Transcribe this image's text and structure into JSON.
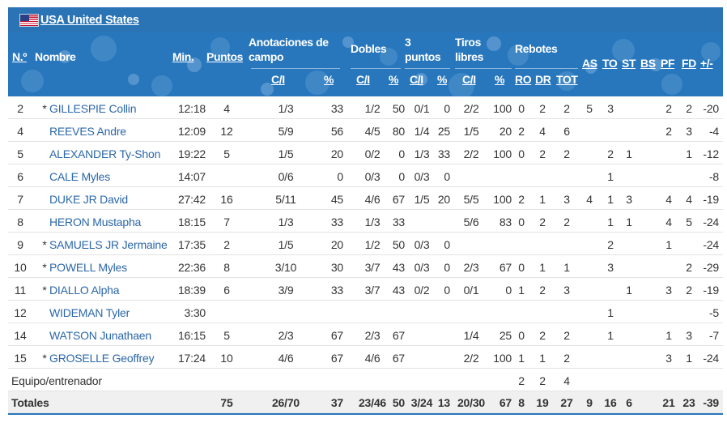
{
  "team": {
    "name": "USA United States"
  },
  "header": {
    "no": "N.º",
    "name": "Nombre",
    "min": "Min.",
    "pts": "Puntos",
    "fg": "Anotaciones de campo",
    "two": "Dobles",
    "three": "3 puntos",
    "ft": "Tiros libres",
    "reb": "Rebotes",
    "as": "AS",
    "to": "TO",
    "st": "ST",
    "bs": "BS",
    "pf": "PF",
    "fd": "FD",
    "pm": "+/-",
    "ci": "C/I",
    "pct": "%",
    "ro": "RO",
    "dr": "DR",
    "tot": "TOT"
  },
  "players": [
    {
      "no": "2",
      "starter": "*",
      "name": "GILLESPIE Collin",
      "min": "12:18",
      "pts": "4",
      "fg": "1/3",
      "fg_pct": "33",
      "two": "1/2",
      "two_pct": "50",
      "three": "0/1",
      "three_pct": "0",
      "ft": "2/2",
      "ft_pct": "100",
      "ro": "0",
      "dr": "2",
      "tot": "2",
      "as": "5",
      "to": "3",
      "st": "",
      "bs": "",
      "pf": "2",
      "fd": "2",
      "pm": "-20"
    },
    {
      "no": "4",
      "starter": "",
      "name": "REEVES Andre",
      "min": "12:09",
      "pts": "12",
      "fg": "5/9",
      "fg_pct": "56",
      "two": "4/5",
      "two_pct": "80",
      "three": "1/4",
      "three_pct": "25",
      "ft": "1/5",
      "ft_pct": "20",
      "ro": "2",
      "dr": "4",
      "tot": "6",
      "as": "",
      "to": "",
      "st": "",
      "bs": "",
      "pf": "2",
      "fd": "3",
      "pm": "-4"
    },
    {
      "no": "5",
      "starter": "",
      "name": "ALEXANDER Ty-Shon",
      "min": "19:22",
      "pts": "5",
      "fg": "1/5",
      "fg_pct": "20",
      "two": "0/2",
      "two_pct": "0",
      "three": "1/3",
      "three_pct": "33",
      "ft": "2/2",
      "ft_pct": "100",
      "ro": "0",
      "dr": "2",
      "tot": "2",
      "as": "",
      "to": "2",
      "st": "1",
      "bs": "",
      "pf": "",
      "fd": "1",
      "pm": "-12"
    },
    {
      "no": "6",
      "starter": "",
      "name": "CALE Myles",
      "min": "14:07",
      "pts": "",
      "fg": "0/6",
      "fg_pct": "0",
      "two": "0/3",
      "two_pct": "0",
      "three": "0/3",
      "three_pct": "0",
      "ft": "",
      "ft_pct": "",
      "ro": "",
      "dr": "",
      "tot": "",
      "as": "",
      "to": "1",
      "st": "",
      "bs": "",
      "pf": "",
      "fd": "",
      "pm": "-8"
    },
    {
      "no": "7",
      "starter": "",
      "name": "DUKE JR David",
      "min": "27:42",
      "pts": "16",
      "fg": "5/11",
      "fg_pct": "45",
      "two": "4/6",
      "two_pct": "67",
      "three": "1/5",
      "three_pct": "20",
      "ft": "5/5",
      "ft_pct": "100",
      "ro": "2",
      "dr": "1",
      "tot": "3",
      "as": "4",
      "to": "1",
      "st": "3",
      "bs": "",
      "pf": "4",
      "fd": "4",
      "pm": "-19"
    },
    {
      "no": "8",
      "starter": "",
      "name": "HERON Mustapha",
      "min": "18:15",
      "pts": "7",
      "fg": "1/3",
      "fg_pct": "33",
      "two": "1/3",
      "two_pct": "33",
      "three": "",
      "three_pct": "",
      "ft": "5/6",
      "ft_pct": "83",
      "ro": "0",
      "dr": "2",
      "tot": "2",
      "as": "",
      "to": "1",
      "st": "1",
      "bs": "",
      "pf": "4",
      "fd": "5",
      "pm": "-24"
    },
    {
      "no": "9",
      "starter": "*",
      "name": "SAMUELS JR Jermaine",
      "min": "17:35",
      "pts": "2",
      "fg": "1/5",
      "fg_pct": "20",
      "two": "1/2",
      "two_pct": "50",
      "three": "0/3",
      "three_pct": "0",
      "ft": "",
      "ft_pct": "",
      "ro": "",
      "dr": "",
      "tot": "",
      "as": "",
      "to": "2",
      "st": "",
      "bs": "",
      "pf": "1",
      "fd": "",
      "pm": "-24"
    },
    {
      "no": "10",
      "starter": "*",
      "name": "POWELL Myles",
      "min": "22:36",
      "pts": "8",
      "fg": "3/10",
      "fg_pct": "30",
      "two": "3/7",
      "two_pct": "43",
      "three": "0/3",
      "three_pct": "0",
      "ft": "2/3",
      "ft_pct": "67",
      "ro": "0",
      "dr": "1",
      "tot": "1",
      "as": "",
      "to": "3",
      "st": "",
      "bs": "",
      "pf": "",
      "fd": "2",
      "pm": "-29"
    },
    {
      "no": "11",
      "starter": "*",
      "name": "DIALLO Alpha",
      "min": "18:39",
      "pts": "6",
      "fg": "3/9",
      "fg_pct": "33",
      "two": "3/7",
      "two_pct": "43",
      "three": "0/2",
      "three_pct": "0",
      "ft": "0/1",
      "ft_pct": "0",
      "ro": "1",
      "dr": "2",
      "tot": "3",
      "as": "",
      "to": "",
      "st": "1",
      "bs": "",
      "pf": "3",
      "fd": "2",
      "pm": "-19"
    },
    {
      "no": "12",
      "starter": "",
      "name": "WIDEMAN Tyler",
      "min": "3:30",
      "pts": "",
      "fg": "",
      "fg_pct": "",
      "two": "",
      "two_pct": "",
      "three": "",
      "three_pct": "",
      "ft": "",
      "ft_pct": "",
      "ro": "",
      "dr": "",
      "tot": "",
      "as": "",
      "to": "1",
      "st": "",
      "bs": "",
      "pf": "",
      "fd": "",
      "pm": "-5"
    },
    {
      "no": "14",
      "starter": "",
      "name": "WATSON Junathaen",
      "min": "16:15",
      "pts": "5",
      "fg": "2/3",
      "fg_pct": "67",
      "two": "2/3",
      "two_pct": "67",
      "three": "",
      "three_pct": "",
      "ft": "1/4",
      "ft_pct": "25",
      "ro": "0",
      "dr": "2",
      "tot": "2",
      "as": "",
      "to": "1",
      "st": "",
      "bs": "",
      "pf": "1",
      "fd": "3",
      "pm": "-7"
    },
    {
      "no": "15",
      "starter": "*",
      "name": "GROSELLE Geoffrey",
      "min": "17:24",
      "pts": "10",
      "fg": "4/6",
      "fg_pct": "67",
      "two": "4/6",
      "two_pct": "67",
      "three": "",
      "three_pct": "",
      "ft": "2/2",
      "ft_pct": "100",
      "ro": "1",
      "dr": "1",
      "tot": "2",
      "as": "",
      "to": "",
      "st": "",
      "bs": "",
      "pf": "3",
      "fd": "1",
      "pm": "-24"
    }
  ],
  "team_row": {
    "label": "Equipo/entrenador",
    "ro": "2",
    "dr": "2",
    "tot": "4"
  },
  "totals": {
    "label": "Totales",
    "pts": "75",
    "fg": "26/70",
    "fg_pct": "37",
    "two": "23/46",
    "two_pct": "50",
    "three": "3/24",
    "three_pct": "13",
    "ft": "20/30",
    "ft_pct": "67",
    "ro": "8",
    "dr": "19",
    "tot": "27",
    "as": "9",
    "to": "16",
    "st": "6",
    "bs": "",
    "pf": "21",
    "fd": "23",
    "pm": "-39"
  },
  "colors": {
    "header_bg": "#2877bd",
    "title_bg": "#2a74b5",
    "link": "#2b67a8",
    "totals_bg": "#f0f0f0"
  },
  "icons": {
    "flag": "usa-flag-icon"
  }
}
